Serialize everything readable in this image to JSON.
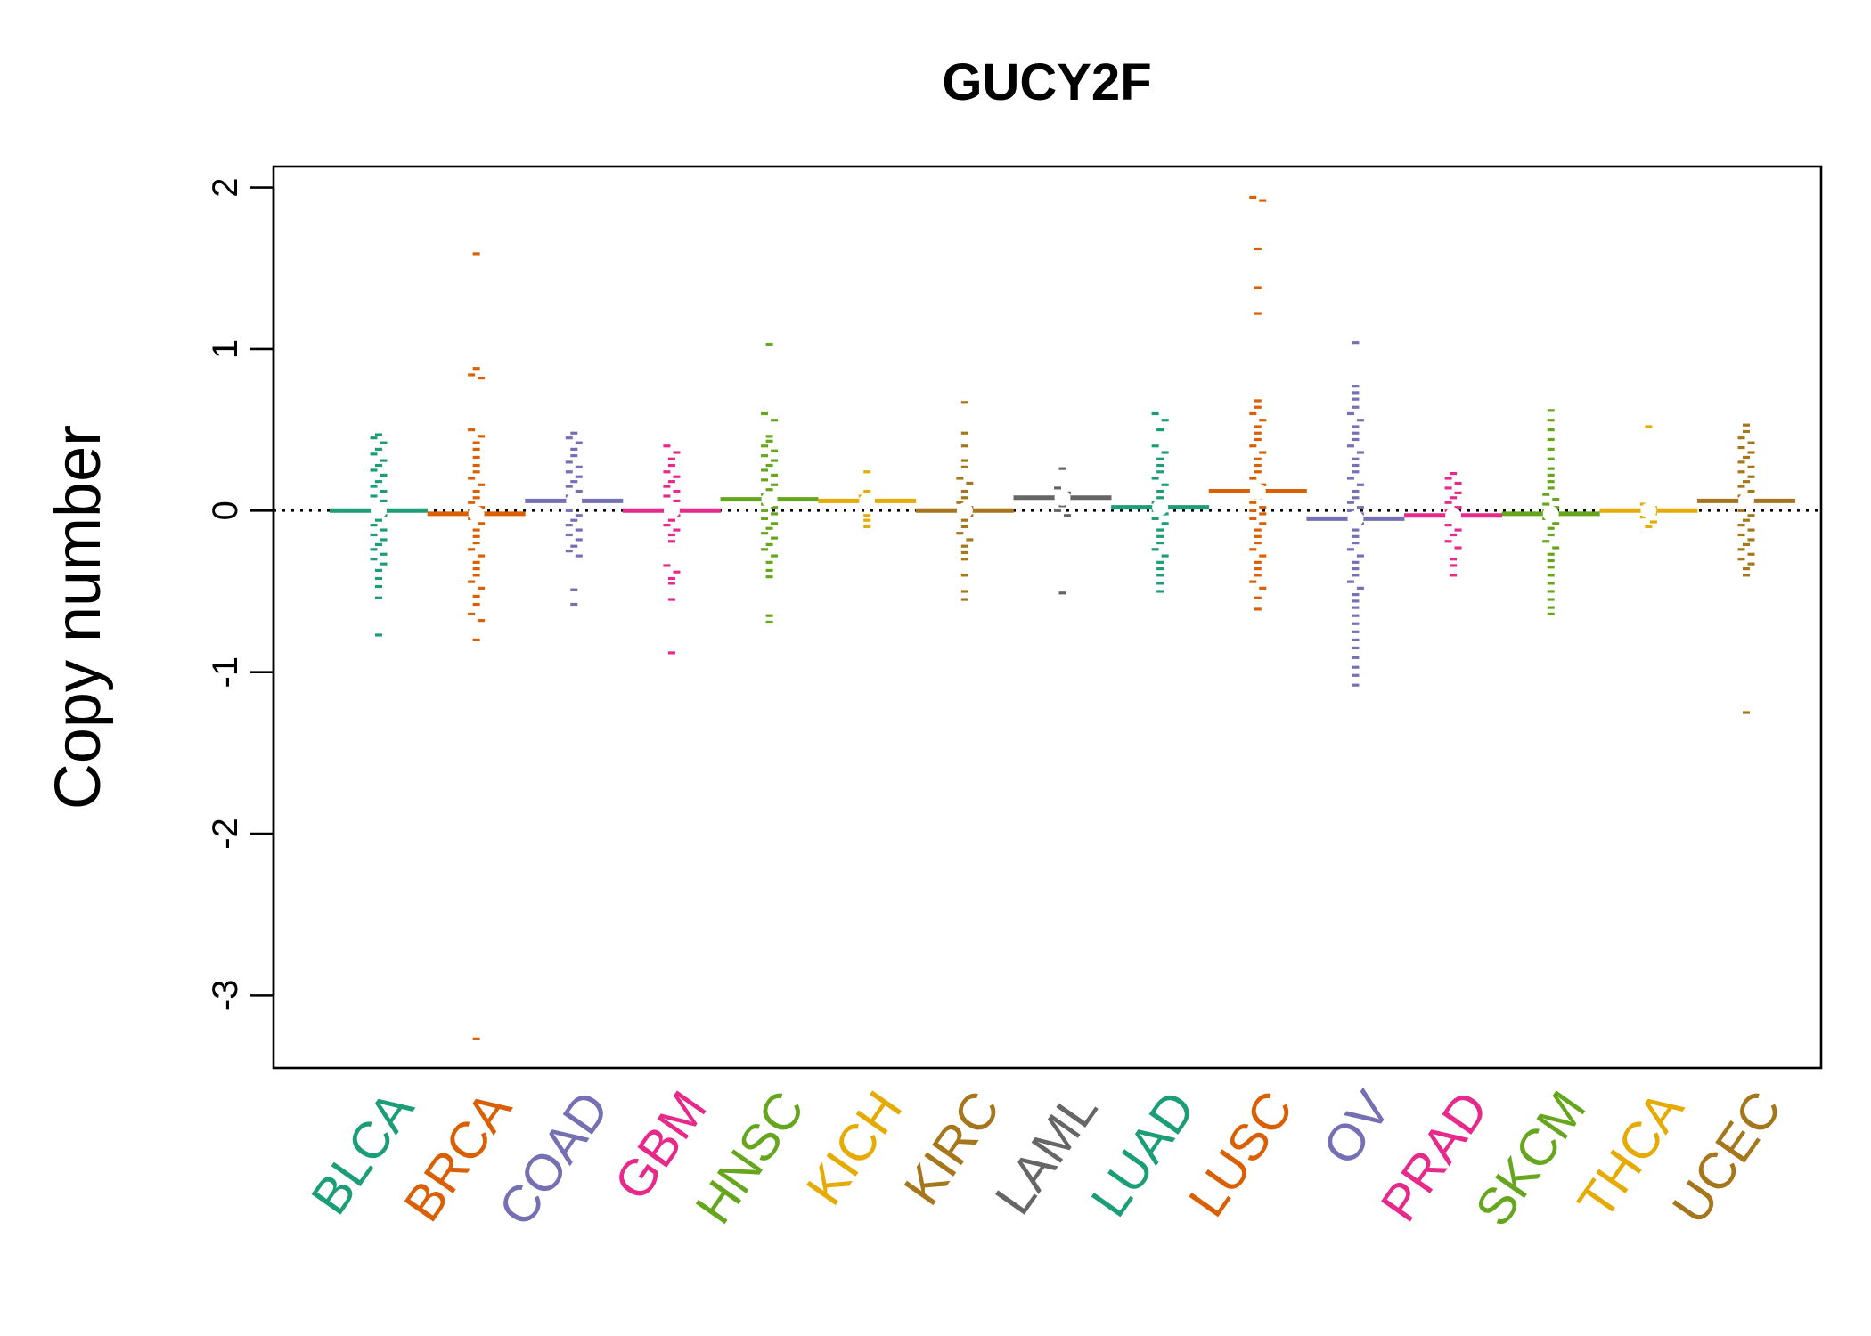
{
  "chart_data": {
    "type": "beeswarm",
    "title": "GUCY2F",
    "ylabel": "Copy number",
    "xlabel": "",
    "ylim": [
      -3.45,
      2.13
    ],
    "yticks": [
      -3,
      -2,
      -1,
      0,
      1,
      2
    ],
    "ytick_labels": [
      "-3",
      "-2",
      "-1",
      "0",
      "1",
      "2"
    ],
    "reference_line": 0,
    "reference_line_style": "dotted",
    "categories": [
      {
        "name": "BLCA",
        "color": "#1B9E77",
        "values": [
          0.47,
          0.45,
          0.42,
          0.38,
          0.35,
          0.31,
          0.28,
          0.25,
          0.22,
          0.18,
          0.15,
          0.12,
          0.09,
          0.06,
          0.03,
          0.0,
          -0.03,
          -0.06,
          -0.09,
          -0.12,
          -0.15,
          -0.18,
          -0.21,
          -0.24,
          -0.27,
          -0.3,
          -0.33,
          -0.37,
          -0.42,
          -0.47,
          -0.54,
          -0.77
        ]
      },
      {
        "name": "BRCA",
        "color": "#D95F02",
        "values": [
          1.59,
          0.88,
          0.84,
          0.82,
          0.5,
          0.46,
          0.42,
          0.38,
          0.33,
          0.28,
          0.24,
          0.2,
          0.16,
          0.12,
          0.08,
          0.05,
          0.02,
          0.0,
          -0.02,
          -0.05,
          -0.08,
          -0.12,
          -0.16,
          -0.2,
          -0.24,
          -0.28,
          -0.32,
          -0.36,
          -0.4,
          -0.44,
          -0.48,
          -0.53,
          -0.58,
          -0.64,
          -0.68,
          -0.8,
          -3.27
        ]
      },
      {
        "name": "COAD",
        "color": "#7570B3",
        "values": [
          0.48,
          0.45,
          0.42,
          0.38,
          0.34,
          0.3,
          0.27,
          0.24,
          0.21,
          0.18,
          0.15,
          0.12,
          0.09,
          0.06,
          0.03,
          0.0,
          -0.03,
          -0.06,
          -0.09,
          -0.12,
          -0.15,
          -0.18,
          -0.22,
          -0.25,
          -0.28,
          -0.49,
          -0.58
        ]
      },
      {
        "name": "GBM",
        "color": "#E7298A",
        "values": [
          0.4,
          0.36,
          0.32,
          0.28,
          0.24,
          0.21,
          0.18,
          0.15,
          0.12,
          0.09,
          0.06,
          0.03,
          0.0,
          -0.03,
          -0.06,
          -0.09,
          -0.12,
          -0.15,
          -0.19,
          -0.34,
          -0.38,
          -0.42,
          -0.45,
          -0.55,
          -0.88
        ]
      },
      {
        "name": "HNSC",
        "color": "#66A61E",
        "values": [
          1.03,
          0.6,
          0.56,
          0.46,
          0.43,
          0.4,
          0.37,
          0.34,
          0.31,
          0.28,
          0.25,
          0.22,
          0.19,
          0.16,
          0.13,
          0.1,
          0.07,
          0.04,
          0.02,
          0.0,
          -0.02,
          -0.05,
          -0.08,
          -0.11,
          -0.14,
          -0.17,
          -0.21,
          -0.24,
          -0.28,
          -0.32,
          -0.37,
          -0.41,
          -0.65,
          -0.69
        ]
      },
      {
        "name": "KICH",
        "color": "#E6AB02",
        "values": [
          0.24,
          0.12,
          0.09,
          0.06,
          0.03,
          -0.03,
          -0.06,
          -0.1
        ]
      },
      {
        "name": "KIRC",
        "color": "#A6761D",
        "values": [
          0.67,
          0.48,
          0.4,
          0.31,
          0.27,
          0.2,
          0.17,
          0.12,
          0.08,
          0.05,
          0.02,
          0.0,
          -0.03,
          -0.06,
          -0.1,
          -0.14,
          -0.18,
          -0.22,
          -0.26,
          -0.3,
          -0.4,
          -0.5,
          -0.55
        ]
      },
      {
        "name": "LAML",
        "color": "#666666",
        "values": [
          0.26,
          0.14,
          0.11,
          0.08,
          0.03,
          0.0,
          -0.03,
          -0.51
        ]
      },
      {
        "name": "LUAD",
        "color": "#1B9E77",
        "values": [
          0.6,
          0.56,
          0.5,
          0.4,
          0.36,
          0.32,
          0.28,
          0.24,
          0.2,
          0.16,
          0.12,
          0.08,
          0.05,
          0.02,
          0.0,
          -0.02,
          -0.05,
          -0.08,
          -0.12,
          -0.16,
          -0.2,
          -0.24,
          -0.28,
          -0.32,
          -0.36,
          -0.4,
          -0.45,
          -0.5
        ]
      },
      {
        "name": "LUSC",
        "color": "#D95F02",
        "values": [
          1.94,
          1.92,
          1.62,
          1.38,
          1.22,
          0.68,
          0.64,
          0.6,
          0.56,
          0.52,
          0.48,
          0.44,
          0.4,
          0.36,
          0.32,
          0.28,
          0.24,
          0.2,
          0.16,
          0.12,
          0.08,
          0.05,
          0.02,
          0.0,
          -0.02,
          -0.05,
          -0.08,
          -0.12,
          -0.16,
          -0.2,
          -0.24,
          -0.28,
          -0.32,
          -0.36,
          -0.4,
          -0.44,
          -0.48,
          -0.54,
          -0.61
        ]
      },
      {
        "name": "OV",
        "color": "#7570B3",
        "values": [
          1.04,
          0.77,
          0.73,
          0.69,
          0.64,
          0.6,
          0.56,
          0.52,
          0.48,
          0.44,
          0.4,
          0.36,
          0.32,
          0.28,
          0.24,
          0.2,
          0.16,
          0.12,
          0.08,
          0.05,
          0.02,
          0.0,
          -0.02,
          -0.05,
          -0.08,
          -0.12,
          -0.16,
          -0.2,
          -0.24,
          -0.28,
          -0.32,
          -0.36,
          -0.4,
          -0.44,
          -0.48,
          -0.52,
          -0.56,
          -0.6,
          -0.65,
          -0.7,
          -0.75,
          -0.8,
          -0.85,
          -0.91,
          -0.97,
          -1.02,
          -1.08
        ]
      },
      {
        "name": "PRAD",
        "color": "#E7298A",
        "values": [
          0.23,
          0.2,
          0.17,
          0.14,
          0.11,
          0.08,
          0.05,
          0.02,
          0.0,
          -0.03,
          -0.06,
          -0.09,
          -0.12,
          -0.15,
          -0.19,
          -0.23,
          -0.3,
          -0.34,
          -0.4
        ]
      },
      {
        "name": "SKCM",
        "color": "#66A61E",
        "values": [
          0.62,
          0.56,
          0.5,
          0.44,
          0.38,
          0.32,
          0.26,
          0.22,
          0.18,
          0.14,
          0.1,
          0.07,
          0.04,
          0.02,
          0.0,
          -0.02,
          -0.05,
          -0.08,
          -0.11,
          -0.15,
          -0.19,
          -0.23,
          -0.27,
          -0.31,
          -0.35,
          -0.4,
          -0.45,
          -0.5,
          -0.55,
          -0.6,
          -0.64
        ]
      },
      {
        "name": "THCA",
        "color": "#E6AB02",
        "values": [
          0.52,
          0.04,
          0.02,
          0.0,
          -0.02,
          -0.04,
          -0.07,
          -0.1
        ]
      },
      {
        "name": "UCEC",
        "color": "#A6761D",
        "values": [
          0.53,
          0.49,
          0.45,
          0.42,
          0.39,
          0.36,
          0.33,
          0.3,
          0.27,
          0.24,
          0.21,
          0.18,
          0.15,
          0.12,
          0.09,
          0.06,
          0.03,
          0.0,
          -0.03,
          -0.06,
          -0.09,
          -0.12,
          -0.15,
          -0.18,
          -0.21,
          -0.24,
          -0.27,
          -0.3,
          -0.33,
          -0.36,
          -0.4,
          -1.25
        ]
      }
    ]
  }
}
